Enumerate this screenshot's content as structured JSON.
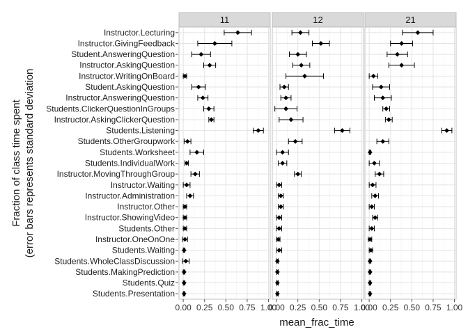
{
  "chart_data": {
    "type": "scatter",
    "facets": [
      "11",
      "12",
      "21"
    ],
    "xlabel": "mean_frac_time",
    "ylabel_lines": [
      "Fraction of class time spent",
      "(error bars represents standard deviation"
    ],
    "xlim": [
      -0.05,
      1.02
    ],
    "xticks": [
      0.0,
      0.25,
      0.5,
      0.75,
      1.0
    ],
    "xtick_labels": [
      "0.00",
      "0.25",
      "0.50",
      "0.75",
      "1.00"
    ],
    "grid": true,
    "categories": [
      "Instructor.Lecturing",
      "Instructor.GivingFeedback",
      "Student.AnsweringQuestion",
      "Instructor.AskingQuestion",
      "Instructor.WritingOnBoard",
      "Student.AskingQuestion",
      "Instructor.AnsweringQuestion",
      "Students.ClickerQuestionInGroups",
      "Instructor.AskingClickerQuestion",
      "Students.Listening",
      "Students.OtherGroupwork",
      "Students.Worksheet",
      "Students.IndividualWork",
      "Instructor.MovingThroughGroup",
      "Instructor.Waiting",
      "Instructor.Administration",
      "Instructor.Other",
      "Instructor.ShowingVideo",
      "Students.Other",
      "Instructor.OneOnOne",
      "Students.Waiting",
      "Students.WholeClassDiscussion",
      "Students.MakingPrediction",
      "Students.Quiz",
      "Students.Presentation"
    ],
    "series": [
      {
        "facet": "11",
        "mean": [
          0.64,
          0.37,
          0.21,
          0.31,
          0.02,
          0.18,
          0.23,
          0.3,
          0.33,
          0.88,
          0.05,
          0.16,
          0.04,
          0.14,
          0.04,
          0.08,
          0.02,
          0.02,
          0.02,
          0.02,
          0.01,
          0.03,
          0.01,
          0.01,
          0.01
        ],
        "sd": [
          0.16,
          0.2,
          0.11,
          0.07,
          0.02,
          0.08,
          0.06,
          0.06,
          0.03,
          0.06,
          0.04,
          0.08,
          0.02,
          0.05,
          0.04,
          0.04,
          0.02,
          0.02,
          0.02,
          0.03,
          0.01,
          0.04,
          0.01,
          0.01,
          0.01
        ]
      },
      {
        "facet": "12",
        "mean": [
          0.28,
          0.52,
          0.25,
          0.29,
          0.33,
          0.09,
          0.11,
          0.11,
          0.17,
          0.77,
          0.22,
          0.07,
          0.07,
          0.25,
          0.03,
          0.05,
          0.05,
          0.03,
          0.03,
          0.02,
          0.03,
          0.01,
          0.01,
          0.01,
          0.01
        ],
        "sd": [
          0.1,
          0.1,
          0.1,
          0.1,
          0.22,
          0.05,
          0.06,
          0.13,
          0.14,
          0.09,
          0.08,
          0.07,
          0.05,
          0.04,
          0.03,
          0.03,
          0.03,
          0.03,
          0.03,
          0.02,
          0.03,
          0.01,
          0.01,
          0.01,
          0.01
        ]
      },
      {
        "facet": "21",
        "mean": [
          0.57,
          0.38,
          0.33,
          0.38,
          0.05,
          0.14,
          0.16,
          0.2,
          0.23,
          0.91,
          0.16,
          0.01,
          0.06,
          0.12,
          0.04,
          0.07,
          0.03,
          0.07,
          0.03,
          0.01,
          0.02,
          0.01,
          0.01,
          0.01,
          0.01
        ],
        "sd": [
          0.18,
          0.13,
          0.12,
          0.15,
          0.05,
          0.1,
          0.1,
          0.04,
          0.04,
          0.06,
          0.07,
          0.01,
          0.06,
          0.05,
          0.04,
          0.04,
          0.03,
          0.03,
          0.03,
          0.02,
          0.02,
          0.01,
          0.01,
          0.01,
          0.01
        ]
      }
    ]
  }
}
